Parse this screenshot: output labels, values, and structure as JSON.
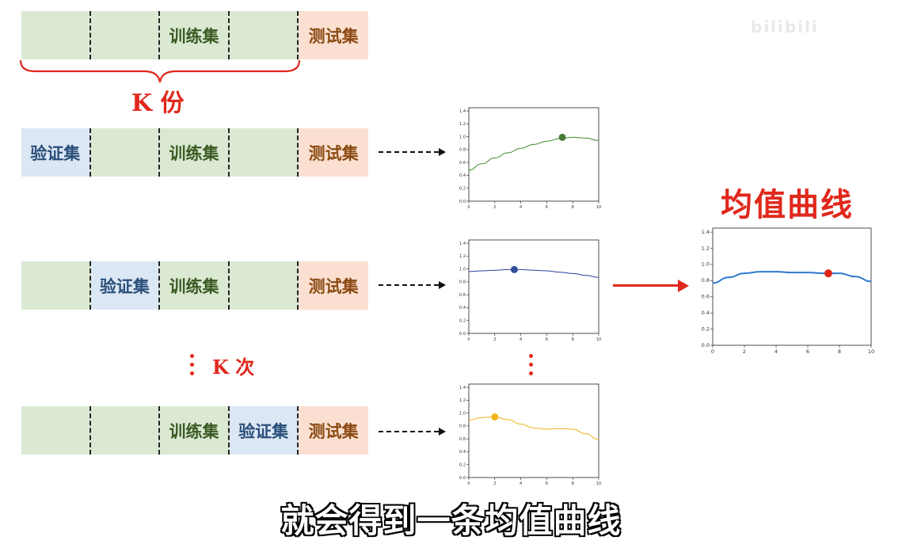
{
  "labels": {
    "train": "训练集",
    "test": "测试集",
    "val": "验证集",
    "k_parts": "K 份",
    "k_times": "K 次",
    "mean_curve_title": "均值曲线"
  },
  "caption": "就会得到一条均值曲线",
  "watermark": "bilibili",
  "rows": [
    [
      "train",
      "train",
      "train",
      "train",
      "test"
    ],
    [
      "val",
      "train",
      "train",
      "train",
      "test"
    ],
    [
      "train",
      "val",
      "train",
      "train",
      "test"
    ],
    [
      "train",
      "train",
      "train",
      "val",
      "test"
    ]
  ],
  "row_text": [
    [
      "",
      "",
      "训练集",
      "",
      "测试集"
    ],
    [
      "验证集",
      "",
      "训练集",
      "",
      "测试集"
    ],
    [
      "",
      "验证集",
      "训练集",
      "",
      "测试集"
    ],
    [
      "",
      "",
      "训练集",
      "验证集",
      "测试集"
    ]
  ],
  "colors": {
    "fold_curves": [
      "#3f8a2e",
      "#2d3fa0",
      "#f2b31b"
    ],
    "fold_markers": [
      "#4a7a3a",
      "#2f4f9a",
      "#f2b31b"
    ],
    "mean_curve": "#2e78d0",
    "mean_marker": "#e0281c",
    "arrow_red": "#e0281c"
  },
  "chart_data": [
    {
      "type": "line",
      "x": [
        0,
        1,
        2,
        3,
        4,
        5,
        6,
        7,
        8,
        9,
        10
      ],
      "series": [
        {
          "values": [
            0.48,
            0.58,
            0.67,
            0.75,
            0.82,
            0.88,
            0.93,
            0.97,
            0.99,
            0.98,
            0.94
          ]
        }
      ],
      "marker": {
        "x": 7.2,
        "y": 0.99
      },
      "xticks": [
        "0",
        "2",
        "4",
        "6",
        "8",
        "10"
      ],
      "yticks": [
        "0.0",
        "0.2",
        "0.4",
        "0.6",
        "0.8",
        "1.0",
        "1.2",
        "1.4"
      ],
      "xlim": [
        0,
        10
      ],
      "ylim": [
        0,
        1.45
      ]
    },
    {
      "type": "line",
      "x": [
        0,
        1,
        2,
        3,
        4,
        5,
        6,
        7,
        8,
        9,
        10
      ],
      "series": [
        {
          "values": [
            0.96,
            0.97,
            0.98,
            0.99,
            0.99,
            0.98,
            0.97,
            0.95,
            0.93,
            0.9,
            0.87
          ]
        }
      ],
      "marker": {
        "x": 3.5,
        "y": 0.99
      },
      "xticks": [
        "0",
        "2",
        "4",
        "6",
        "8",
        "10"
      ],
      "yticks": [
        "0.0",
        "0.2",
        "0.4",
        "0.6",
        "0.8",
        "1.0",
        "1.2",
        "1.4"
      ],
      "xlim": [
        0,
        10
      ],
      "ylim": [
        0,
        1.45
      ]
    },
    {
      "type": "line",
      "x": [
        0,
        1,
        2,
        3,
        4,
        5,
        6,
        7,
        8,
        9,
        10
      ],
      "series": [
        {
          "values": [
            0.89,
            0.93,
            0.94,
            0.9,
            0.83,
            0.77,
            0.75,
            0.76,
            0.75,
            0.68,
            0.59
          ]
        }
      ],
      "marker": {
        "x": 2.0,
        "y": 0.94
      },
      "xticks": [
        "0",
        "2",
        "4",
        "6",
        "8",
        "10"
      ],
      "yticks": [
        "0.0",
        "0.2",
        "0.4",
        "0.6",
        "0.8",
        "1.0",
        "1.2",
        "1.4"
      ],
      "xlim": [
        0,
        10
      ],
      "ylim": [
        0,
        1.45
      ]
    },
    {
      "type": "line",
      "x": [
        0,
        1,
        2,
        3,
        4,
        5,
        6,
        7,
        8,
        9,
        10
      ],
      "series": [
        {
          "values": [
            0.77,
            0.84,
            0.89,
            0.91,
            0.91,
            0.9,
            0.9,
            0.89,
            0.89,
            0.85,
            0.79
          ]
        }
      ],
      "marker": {
        "x": 7.3,
        "y": 0.89
      },
      "xticks": [
        "0",
        "2",
        "4",
        "6",
        "8",
        "10"
      ],
      "yticks": [
        "0.0",
        "0.2",
        "0.4",
        "0.6",
        "0.8",
        "1.0",
        "1.2",
        "1.4"
      ],
      "xlim": [
        0,
        10
      ],
      "ylim": [
        0,
        1.45
      ]
    }
  ]
}
